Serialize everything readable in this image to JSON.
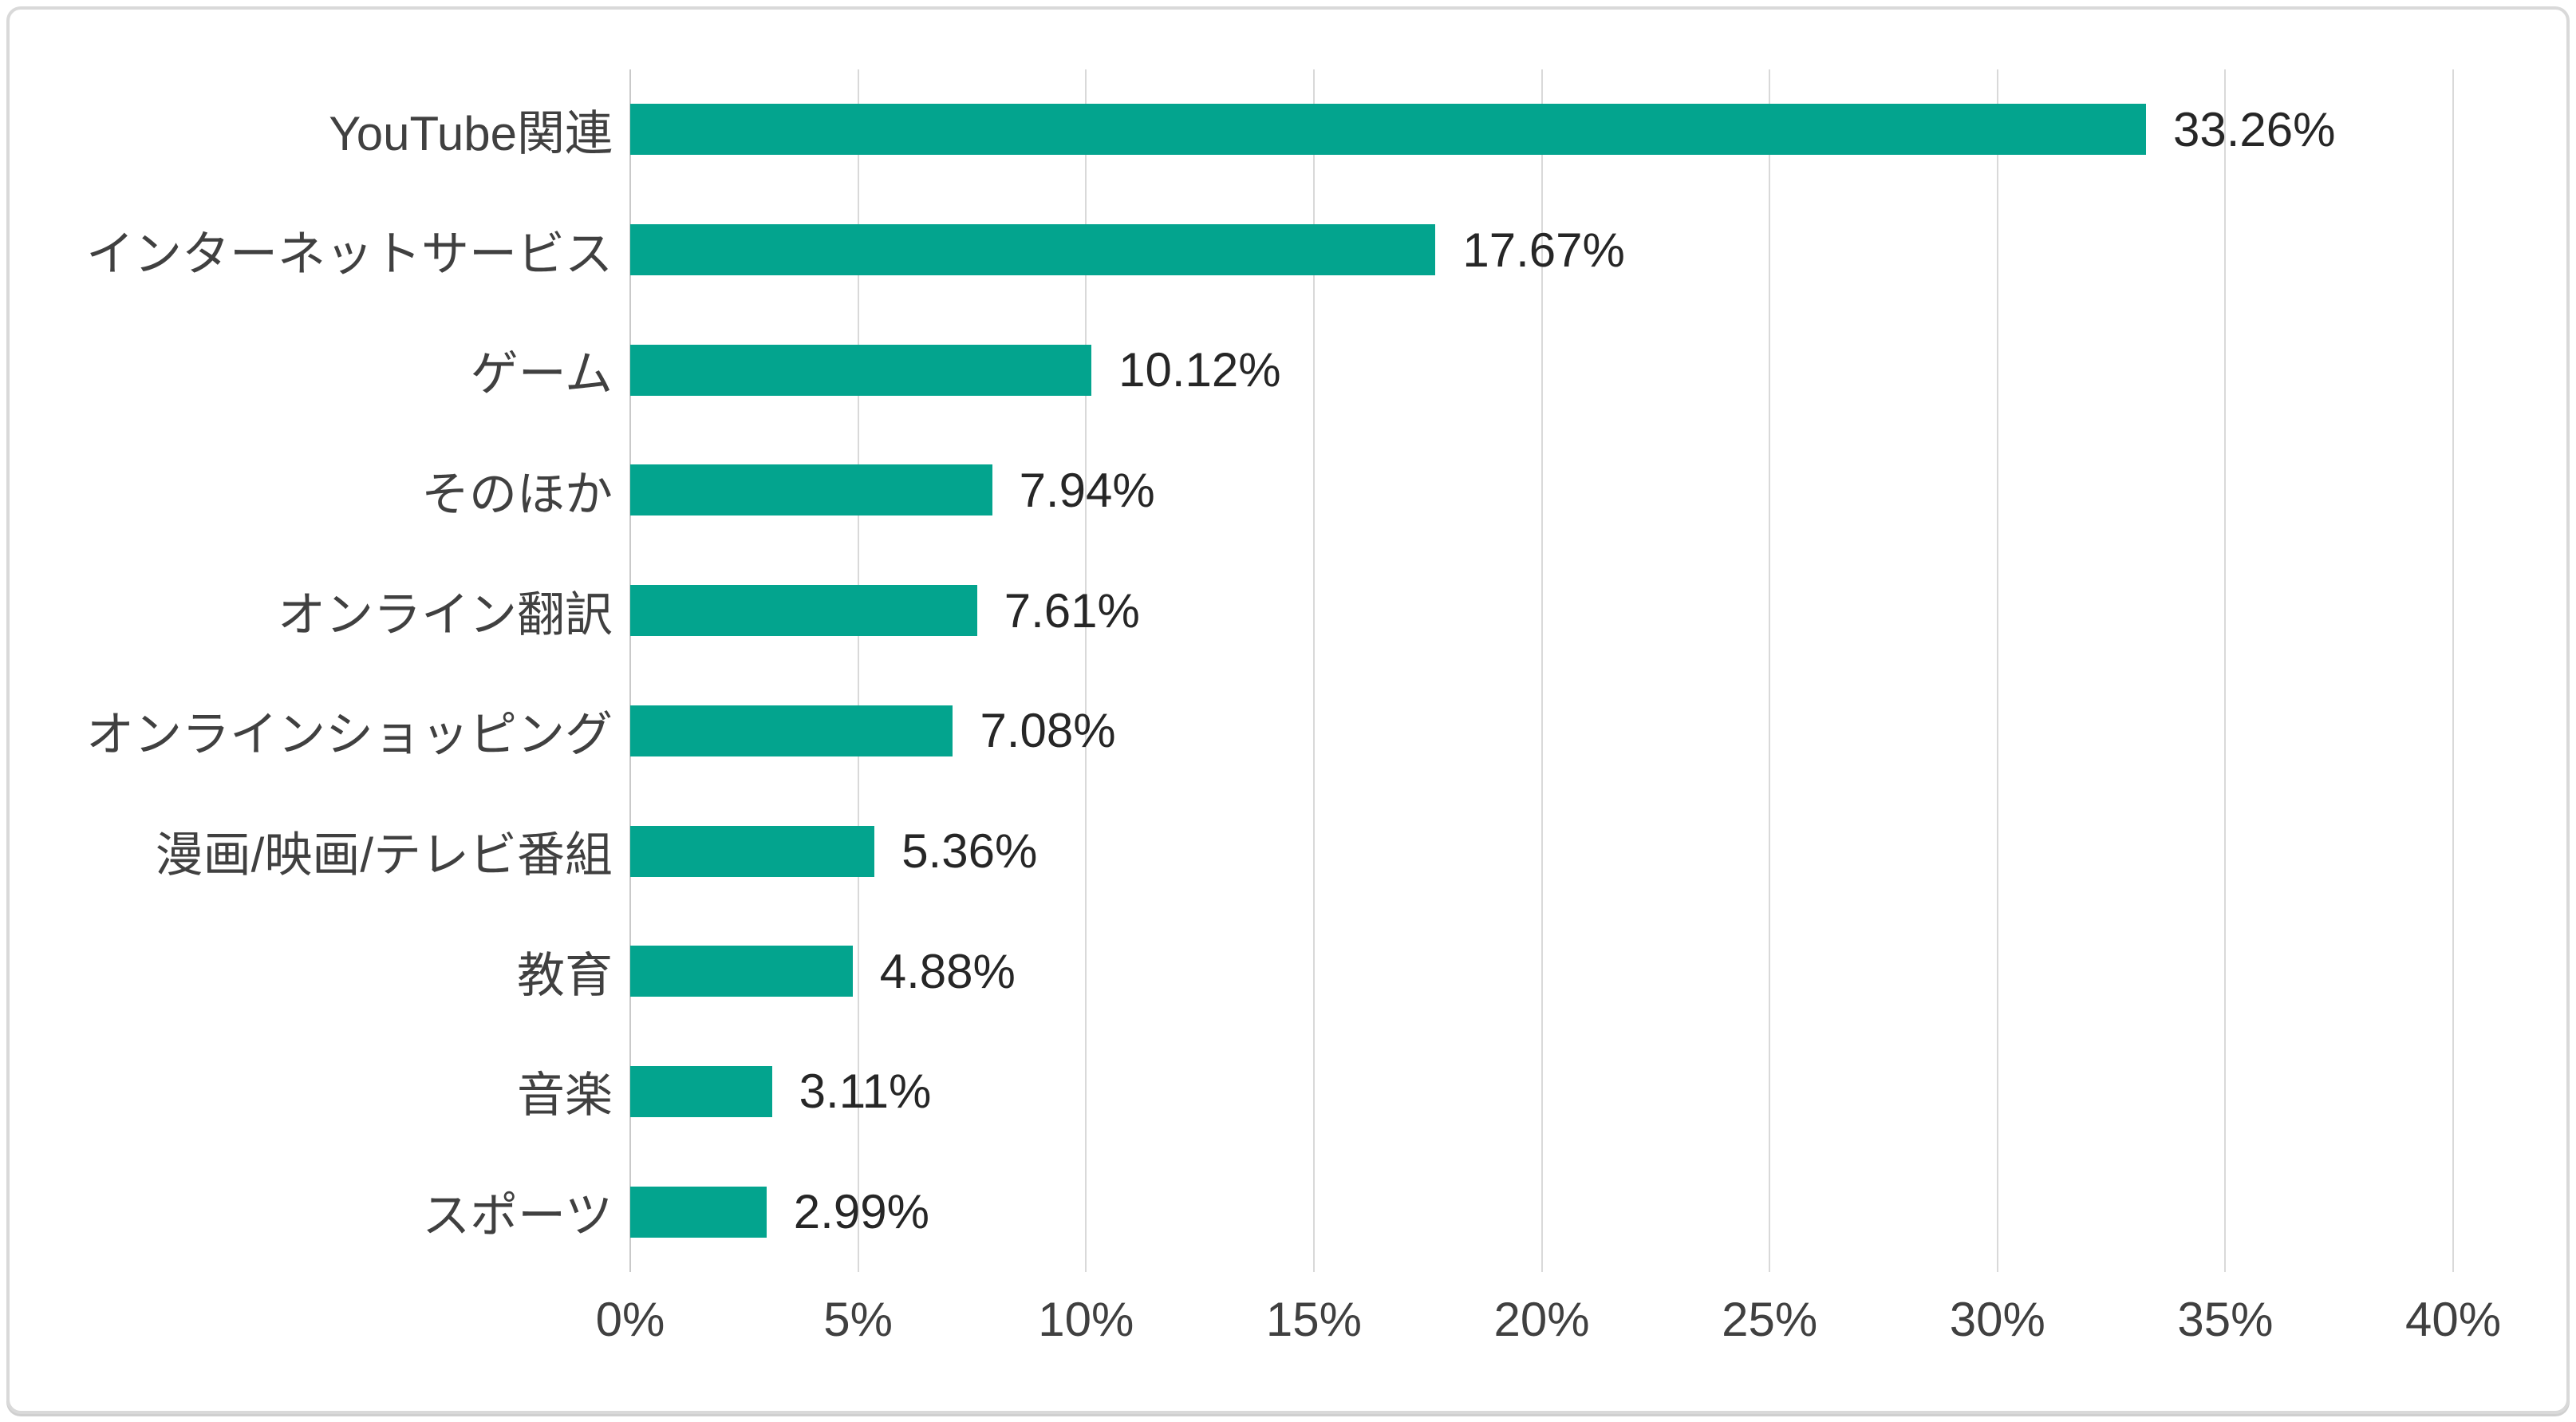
{
  "chart_data": {
    "type": "bar",
    "orientation": "horizontal",
    "title": "",
    "categories": [
      "YouTube関連",
      "インターネットサービス",
      "ゲーム",
      "そのほか",
      "オンライン翻訳",
      "オンラインショッピング",
      "漫画/映画/テレビ番組",
      "教育",
      "音楽",
      "スポーツ"
    ],
    "values": [
      33.26,
      17.67,
      10.12,
      7.94,
      7.61,
      7.08,
      5.36,
      4.88,
      3.11,
      2.99
    ],
    "value_labels": [
      "33.26%",
      "17.67%",
      "10.12%",
      "7.94%",
      "7.61%",
      "7.08%",
      "5.36%",
      "4.88%",
      "3.11%",
      "2.99%"
    ],
    "x_ticks": [
      "0%",
      "5%",
      "10%",
      "15%",
      "20%",
      "25%",
      "30%",
      "35%",
      "40%"
    ],
    "xlim": [
      0,
      40
    ],
    "grid": "vertical-only",
    "legend": "none",
    "colors": {
      "bar": "#03A48E",
      "gridline": "#D9D9D9",
      "category_text": "#404040",
      "value_text": "#262626",
      "axis_text": "#404040",
      "frame_border": "#D9D9D9",
      "background": "#FFFFFF"
    }
  }
}
